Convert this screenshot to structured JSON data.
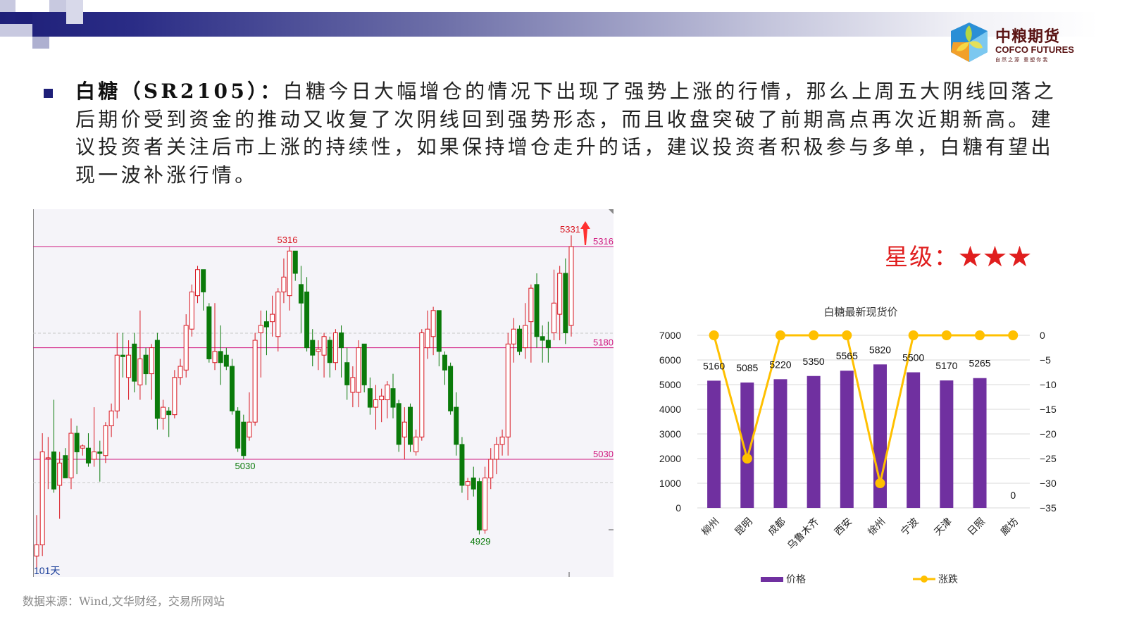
{
  "header": {
    "logo_cn": "中粮期货",
    "logo_en": "COFCO FUTURES",
    "logo_slogan": "自然之源 重塑你我"
  },
  "commentary": {
    "title": "白糖（SR2105）：",
    "body": "白糖今日大幅增仓的情况下出现了强势上涨的行情，那么上周五大阴线回落之后期价受到资金的推动又收复了次阴线回到强势形态，而且收盘突破了前期高点再次近期新高。建议投资者关注后市上涨的持续性，如果保持增仓走升的话，建议投资者积极参与多单，白糖有望出现一波补涨行情。"
  },
  "rating": {
    "label": "星级：",
    "stars": "★★★",
    "value": 3
  },
  "source": "数据来源：Wind,文华财经，交易所网站",
  "colors": {
    "up": "#d8141e",
    "down": "#0a7a0a",
    "level_line": "#d0177e",
    "bar": "#7030a0",
    "line": "#ffc000"
  },
  "chart_data": [
    {
      "type": "candlestick",
      "period_label": "101天",
      "annotations": {
        "high_1": "5316",
        "low_1": "5030",
        "low_2": "4929",
        "last_high": "5331"
      },
      "levels": [
        {
          "label": "5316",
          "value": 5316
        },
        {
          "label": "5180",
          "value": 5180
        },
        {
          "label": "5030",
          "value": 5030
        }
      ],
      "ohlc": [
        [
          4900,
          4955,
          4880,
          4915
        ],
        [
          4915,
          5065,
          4900,
          5040
        ],
        [
          5032,
          5060,
          4990,
          5032
        ],
        [
          5040,
          5110,
          4985,
          4990
        ],
        [
          4995,
          5040,
          4950,
          5025
        ],
        [
          5035,
          5045,
          5005,
          5005
        ],
        [
          5005,
          5085,
          4990,
          5065
        ],
        [
          5065,
          5075,
          5010,
          5040
        ],
        [
          5045,
          5050,
          5035,
          5048
        ],
        [
          5045,
          5065,
          5020,
          5025
        ],
        [
          5030,
          5100,
          5020,
          5040
        ],
        [
          5040,
          5055,
          5000,
          5038
        ],
        [
          5035,
          5080,
          5025,
          5075
        ],
        [
          5075,
          5105,
          5060,
          5095
        ],
        [
          5095,
          5200,
          5085,
          5170
        ],
        [
          5170,
          5200,
          5140,
          5168
        ],
        [
          5140,
          5190,
          5110,
          5170
        ],
        [
          5185,
          5200,
          5120,
          5135
        ],
        [
          5130,
          5230,
          5110,
          5165
        ],
        [
          5170,
          5180,
          5130,
          5145
        ],
        [
          5145,
          5185,
          5110,
          5180
        ],
        [
          5190,
          5200,
          5070,
          5085
        ],
        [
          5085,
          5110,
          5070,
          5100
        ],
        [
          5095,
          5100,
          5060,
          5090
        ],
        [
          5090,
          5150,
          5085,
          5140
        ],
        [
          5140,
          5165,
          5130,
          5155
        ],
        [
          5150,
          5225,
          5140,
          5210
        ],
        [
          5205,
          5265,
          5195,
          5255
        ],
        [
          5250,
          5290,
          5240,
          5285
        ],
        [
          5285,
          5285,
          5230,
          5255
        ],
        [
          5235,
          5240,
          5160,
          5165
        ],
        [
          5160,
          5240,
          5150,
          5175
        ],
        [
          5175,
          5210,
          5130,
          5160
        ],
        [
          5170,
          5180,
          5150,
          5155
        ],
        [
          5155,
          5165,
          5090,
          5095
        ],
        [
          5095,
          5100,
          5040,
          5045
        ],
        [
          5080,
          5090,
          5030,
          5035
        ],
        [
          5060,
          5120,
          5055,
          5080
        ],
        [
          5080,
          5200,
          5075,
          5190
        ],
        [
          5200,
          5230,
          5140,
          5210
        ],
        [
          5215,
          5230,
          5170,
          5208
        ],
        [
          5215,
          5250,
          5195,
          5225
        ],
        [
          5195,
          5260,
          5175,
          5255
        ],
        [
          5255,
          5300,
          5240,
          5275
        ],
        [
          5250,
          5316,
          5230,
          5310
        ],
        [
          5310,
          5310,
          5270,
          5280
        ],
        [
          5265,
          5290,
          5200,
          5240
        ],
        [
          5255,
          5275,
          5175,
          5180
        ],
        [
          5190,
          5205,
          5155,
          5170
        ],
        [
          5175,
          5190,
          5150,
          5178
        ],
        [
          5170,
          5200,
          5140,
          5195
        ],
        [
          5190,
          5195,
          5140,
          5160
        ],
        [
          5160,
          5205,
          5150,
          5200
        ],
        [
          5200,
          5210,
          5140,
          5180
        ],
        [
          5160,
          5180,
          5110,
          5130
        ],
        [
          5120,
          5155,
          5100,
          5140
        ],
        [
          5120,
          5190,
          5100,
          5180
        ],
        [
          5185,
          5185,
          5120,
          5130
        ],
        [
          5125,
          5140,
          5090,
          5100
        ],
        [
          5100,
          5130,
          5070,
          5110
        ],
        [
          5110,
          5125,
          5080,
          5115
        ],
        [
          5110,
          5135,
          5085,
          5130
        ],
        [
          5125,
          5145,
          5085,
          5100
        ],
        [
          5105,
          5110,
          5040,
          5050
        ],
        [
          5060,
          5100,
          5030,
          5080
        ],
        [
          5100,
          5105,
          5040,
          5050
        ],
        [
          5040,
          5070,
          5035,
          5060
        ],
        [
          5060,
          5205,
          5055,
          5200
        ],
        [
          5180,
          5230,
          5165,
          5205
        ],
        [
          5195,
          5235,
          5170,
          5230
        ],
        [
          5230,
          5230,
          5155,
          5175
        ],
        [
          5170,
          5175,
          5130,
          5150
        ],
        [
          5155,
          5160,
          5090,
          5095
        ],
        [
          5100,
          5120,
          5035,
          5050
        ],
        [
          5050,
          5060,
          4985,
          4995
        ],
        [
          4995,
          5005,
          4975,
          5000
        ],
        [
          5005,
          5020,
          4980,
          4990
        ],
        [
          5000,
          5005,
          4929,
          4935
        ],
        [
          4935,
          5020,
          4930,
          5005
        ],
        [
          5005,
          5045,
          4990,
          5030
        ],
        [
          5030,
          5060,
          5010,
          5050
        ],
        [
          5050,
          5070,
          5035,
          5060
        ],
        [
          5060,
          5200,
          5035,
          5185
        ],
        [
          5185,
          5220,
          5160,
          5205
        ],
        [
          5205,
          5210,
          5170,
          5175
        ],
        [
          5180,
          5240,
          5165,
          5210
        ],
        [
          5215,
          5265,
          5160,
          5260
        ],
        [
          5265,
          5280,
          5180,
          5195
        ],
        [
          5195,
          5210,
          5160,
          5190
        ],
        [
          5190,
          5215,
          5160,
          5180
        ],
        [
          5200,
          5285,
          5190,
          5240
        ],
        [
          5225,
          5290,
          5190,
          5280
        ],
        [
          5280,
          5300,
          5185,
          5200
        ],
        [
          5210,
          5331,
          5195,
          5316
        ]
      ]
    },
    {
      "type": "bar+line",
      "title": "白糖最新现货价",
      "categories": [
        "柳州",
        "昆明",
        "成都",
        "乌鲁木齐",
        "西安",
        "徐州",
        "宁波",
        "天津",
        "日照",
        "廊坊"
      ],
      "series": [
        {
          "name": "价格",
          "type": "bar",
          "axis": "left",
          "values": [
            5160,
            5085,
            5220,
            5350,
            5565,
            5820,
            5500,
            5170,
            5265,
            0
          ],
          "data_labels": [
            "5160",
            "5085",
            "5220",
            "5350",
            "5565",
            "5820",
            "5500",
            "5170",
            "5265",
            "0"
          ]
        },
        {
          "name": "涨跌",
          "type": "line",
          "axis": "right",
          "values": [
            0,
            -25,
            0,
            0,
            0,
            -30,
            0,
            0,
            0,
            0
          ]
        }
      ],
      "y_left": {
        "range": [
          0,
          7000
        ],
        "ticks": [
          "0",
          "1000",
          "2000",
          "3000",
          "4000",
          "5000",
          "6000",
          "7000"
        ]
      },
      "y_right": {
        "range": [
          -35,
          0
        ],
        "ticks": [
          "-35",
          "-30",
          "-25",
          "-20",
          "-15",
          "-10",
          "-5",
          "0"
        ]
      },
      "grid": true,
      "legend": "bottom"
    }
  ]
}
